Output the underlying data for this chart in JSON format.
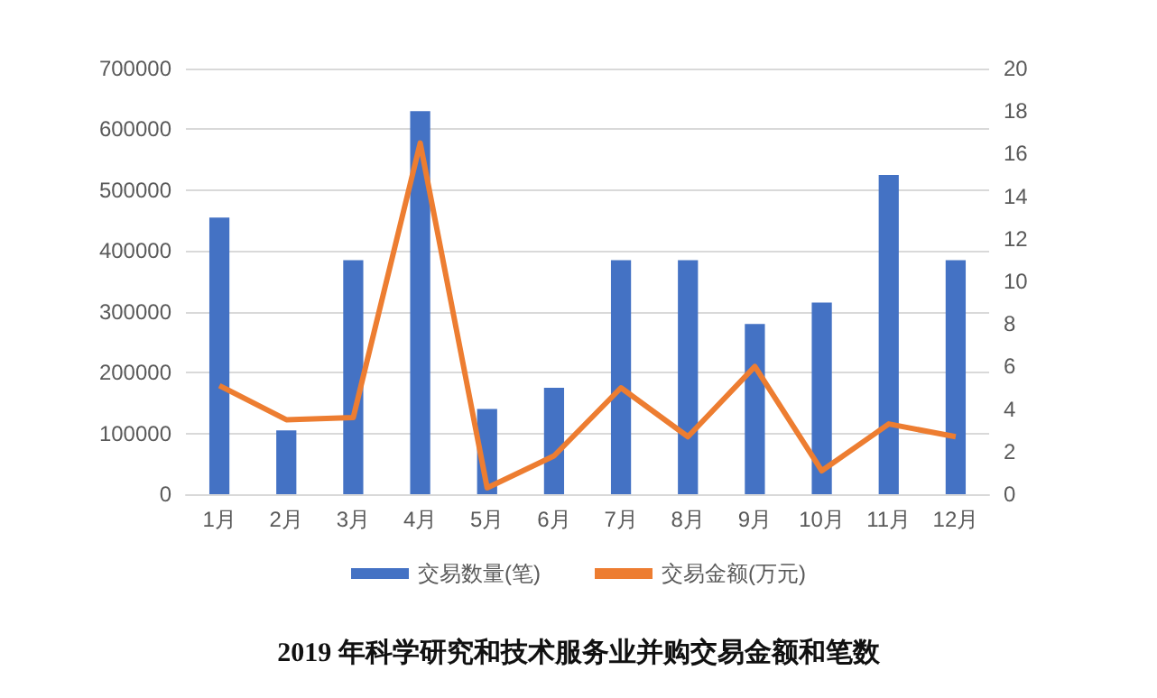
{
  "chart_data": {
    "type": "bar",
    "title": "2019 年科学研究和技术服务业并购交易金额和笔数",
    "categories": [
      "1月",
      "2月",
      "3月",
      "4月",
      "5月",
      "6月",
      "7月",
      "8月",
      "9月",
      "10月",
      "11月",
      "12月"
    ],
    "series": [
      {
        "name": "交易数量(笔)",
        "color": "#4472c4",
        "values": [
          455000,
          105000,
          385000,
          630000,
          140000,
          175000,
          385000,
          385000,
          280000,
          315000,
          525000,
          385000
        ]
      },
      {
        "name": "交易金额(万元)",
        "type": "line",
        "axis": "y2",
        "color": "#ed7d31",
        "values": [
          5.1,
          3.5,
          3.6,
          16.5,
          0.3,
          1.8,
          5.0,
          2.7,
          6.0,
          1.1,
          3.3,
          2.7
        ]
      }
    ],
    "ylim": [
      0,
      700000
    ],
    "yticks": [
      0,
      100000,
      200000,
      300000,
      400000,
      500000,
      600000,
      700000
    ],
    "y2lim": [
      0,
      20
    ],
    "y2ticks": [
      0,
      2,
      4,
      6,
      8,
      10,
      12,
      14,
      16,
      18,
      20
    ],
    "grid": "y",
    "legend": "bottom",
    "marker": "none"
  }
}
